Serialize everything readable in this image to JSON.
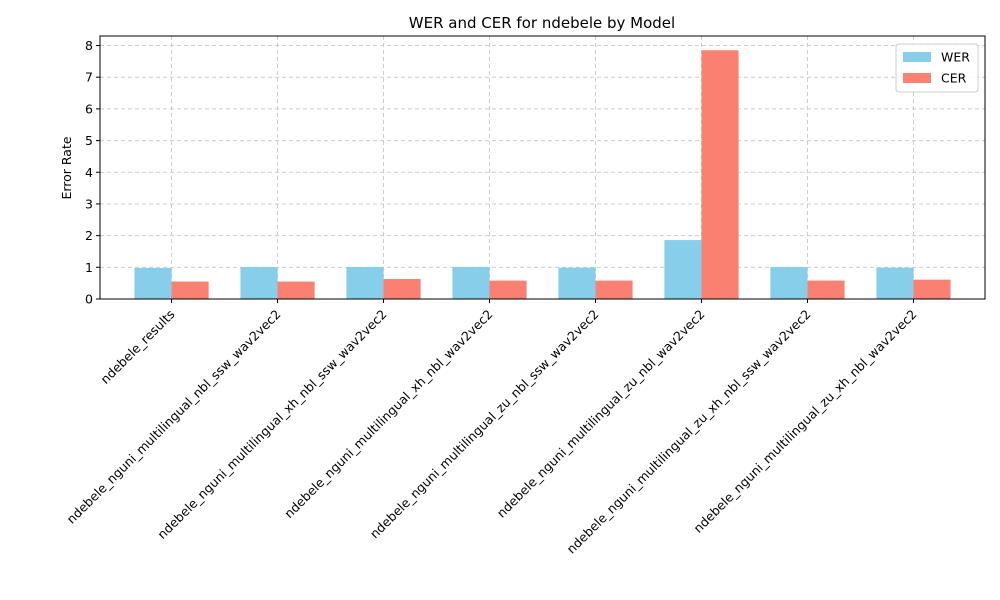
{
  "chart_data": {
    "type": "bar",
    "title": "WER and CER for ndebele by Model",
    "xlabel": "",
    "ylabel": "Error Rate",
    "ylim": [
      0,
      8.3
    ],
    "yticks": [
      0,
      1,
      2,
      3,
      4,
      5,
      6,
      7,
      8
    ],
    "grid": true,
    "legend_position": "top-right",
    "categories": [
      "ndebele_results",
      "ndebele_nguni_multilingual_nbl_ssw_wav2vec2",
      "ndebele_nguni_multilingual_xh_nbl_ssw_wav2vec2",
      "ndebele_nguni_multilingual_xh_nbl_wav2vec2",
      "ndebele_nguni_multilingual_zu_nbl_ssw_wav2vec2",
      "ndebele_nguni_multilingual_zu_nbl_wav2vec2",
      "ndebele_nguni_multilingual_zu_xh_nbl_ssw_wav2vec2",
      "ndebele_nguni_multilingual_zu_xh_nbl_wav2vec2"
    ],
    "series": [
      {
        "name": "WER",
        "color": "#87CEEB",
        "values": [
          0.98,
          1.01,
          1.01,
          1.01,
          0.99,
          1.86,
          1.01,
          0.99
        ]
      },
      {
        "name": "CER",
        "color": "#FA8072",
        "values": [
          0.55,
          0.55,
          0.63,
          0.58,
          0.58,
          7.85,
          0.58,
          0.61
        ]
      }
    ]
  }
}
